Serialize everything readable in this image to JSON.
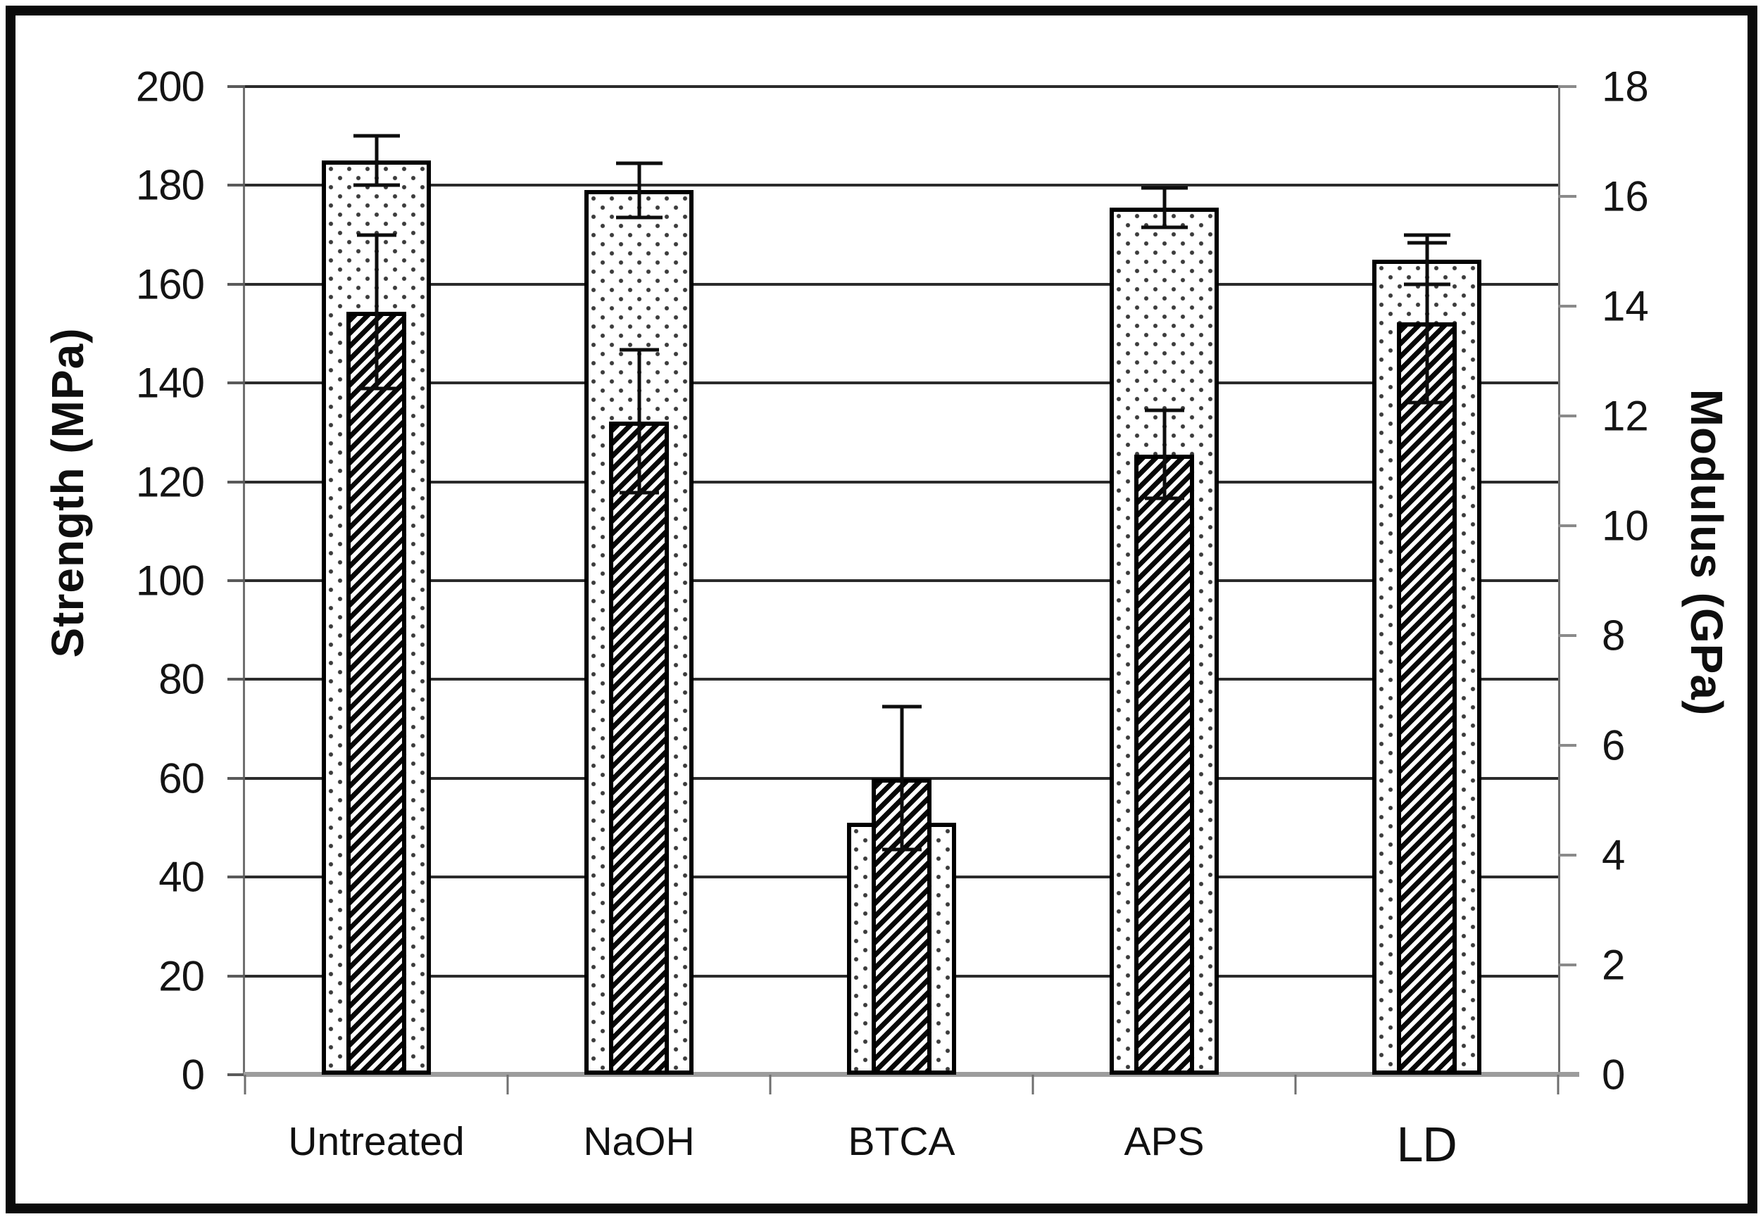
{
  "chart_data": {
    "type": "bar",
    "subtype": "dual-axis-patterned-bars-with-error-bars",
    "title": "",
    "categories": [
      "Untreated",
      "NaOH",
      "BTCA",
      "APS",
      "LD"
    ],
    "series": [
      {
        "name": "Strength (MPa)",
        "axis": "left",
        "pattern": "dotted",
        "values": [
          185,
          179,
          51,
          175.5,
          165
        ],
        "error": [
          5,
          5.5,
          null,
          4,
          5
        ]
      },
      {
        "name": "Modulus (GPa)",
        "axis": "right",
        "pattern": "diagonal-hatch",
        "values": [
          13.9,
          11.9,
          5.4,
          11.3,
          13.7
        ],
        "error": [
          1.4,
          1.3,
          1.3,
          0.8,
          1.45
        ]
      }
    ],
    "axes": {
      "left": {
        "title": "Strength (MPa)",
        "min": 0,
        "max": 200,
        "step": 20,
        "ticks": [
          "200",
          "180",
          "160",
          "140",
          "120",
          "100",
          "80",
          "60",
          "40",
          "20",
          "0"
        ]
      },
      "right": {
        "title": "Modulus (GPa)",
        "min": 0,
        "max": 18,
        "step": 2,
        "ticks": [
          "18",
          "16",
          "14",
          "12",
          "10",
          "8",
          "6",
          "4",
          "2",
          "0"
        ]
      }
    },
    "grid": true,
    "legend": "none",
    "colors": {
      "bar_outline": "#000000",
      "pattern_ink": "#0a0a0a",
      "gridline": "#2b2b2b",
      "axis_line": "#6f6f6f",
      "baseline": "#9c9c9c",
      "frame": "#0b0b0b",
      "background": "#ffffff"
    }
  }
}
